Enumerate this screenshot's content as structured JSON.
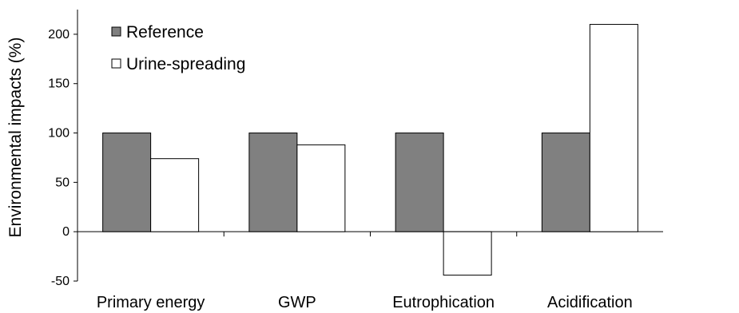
{
  "chart_data": {
    "type": "bar",
    "title": "",
    "xlabel": "",
    "ylabel": "Environmental impacts (%)",
    "ylim": [
      -50,
      225
    ],
    "yticks": [
      -50,
      0,
      50,
      100,
      150,
      200
    ],
    "categories": [
      "Primary energy",
      "GWP",
      "Eutrophication",
      "Acidification"
    ],
    "series": [
      {
        "name": "Reference",
        "values": [
          100,
          100,
          100,
          100
        ],
        "color": "#808080"
      },
      {
        "name": "Urine-spreading",
        "values": [
          74,
          88,
          -44,
          210
        ],
        "color": "#ffffff"
      }
    ],
    "legend_position": "top-left",
    "grid": false
  }
}
